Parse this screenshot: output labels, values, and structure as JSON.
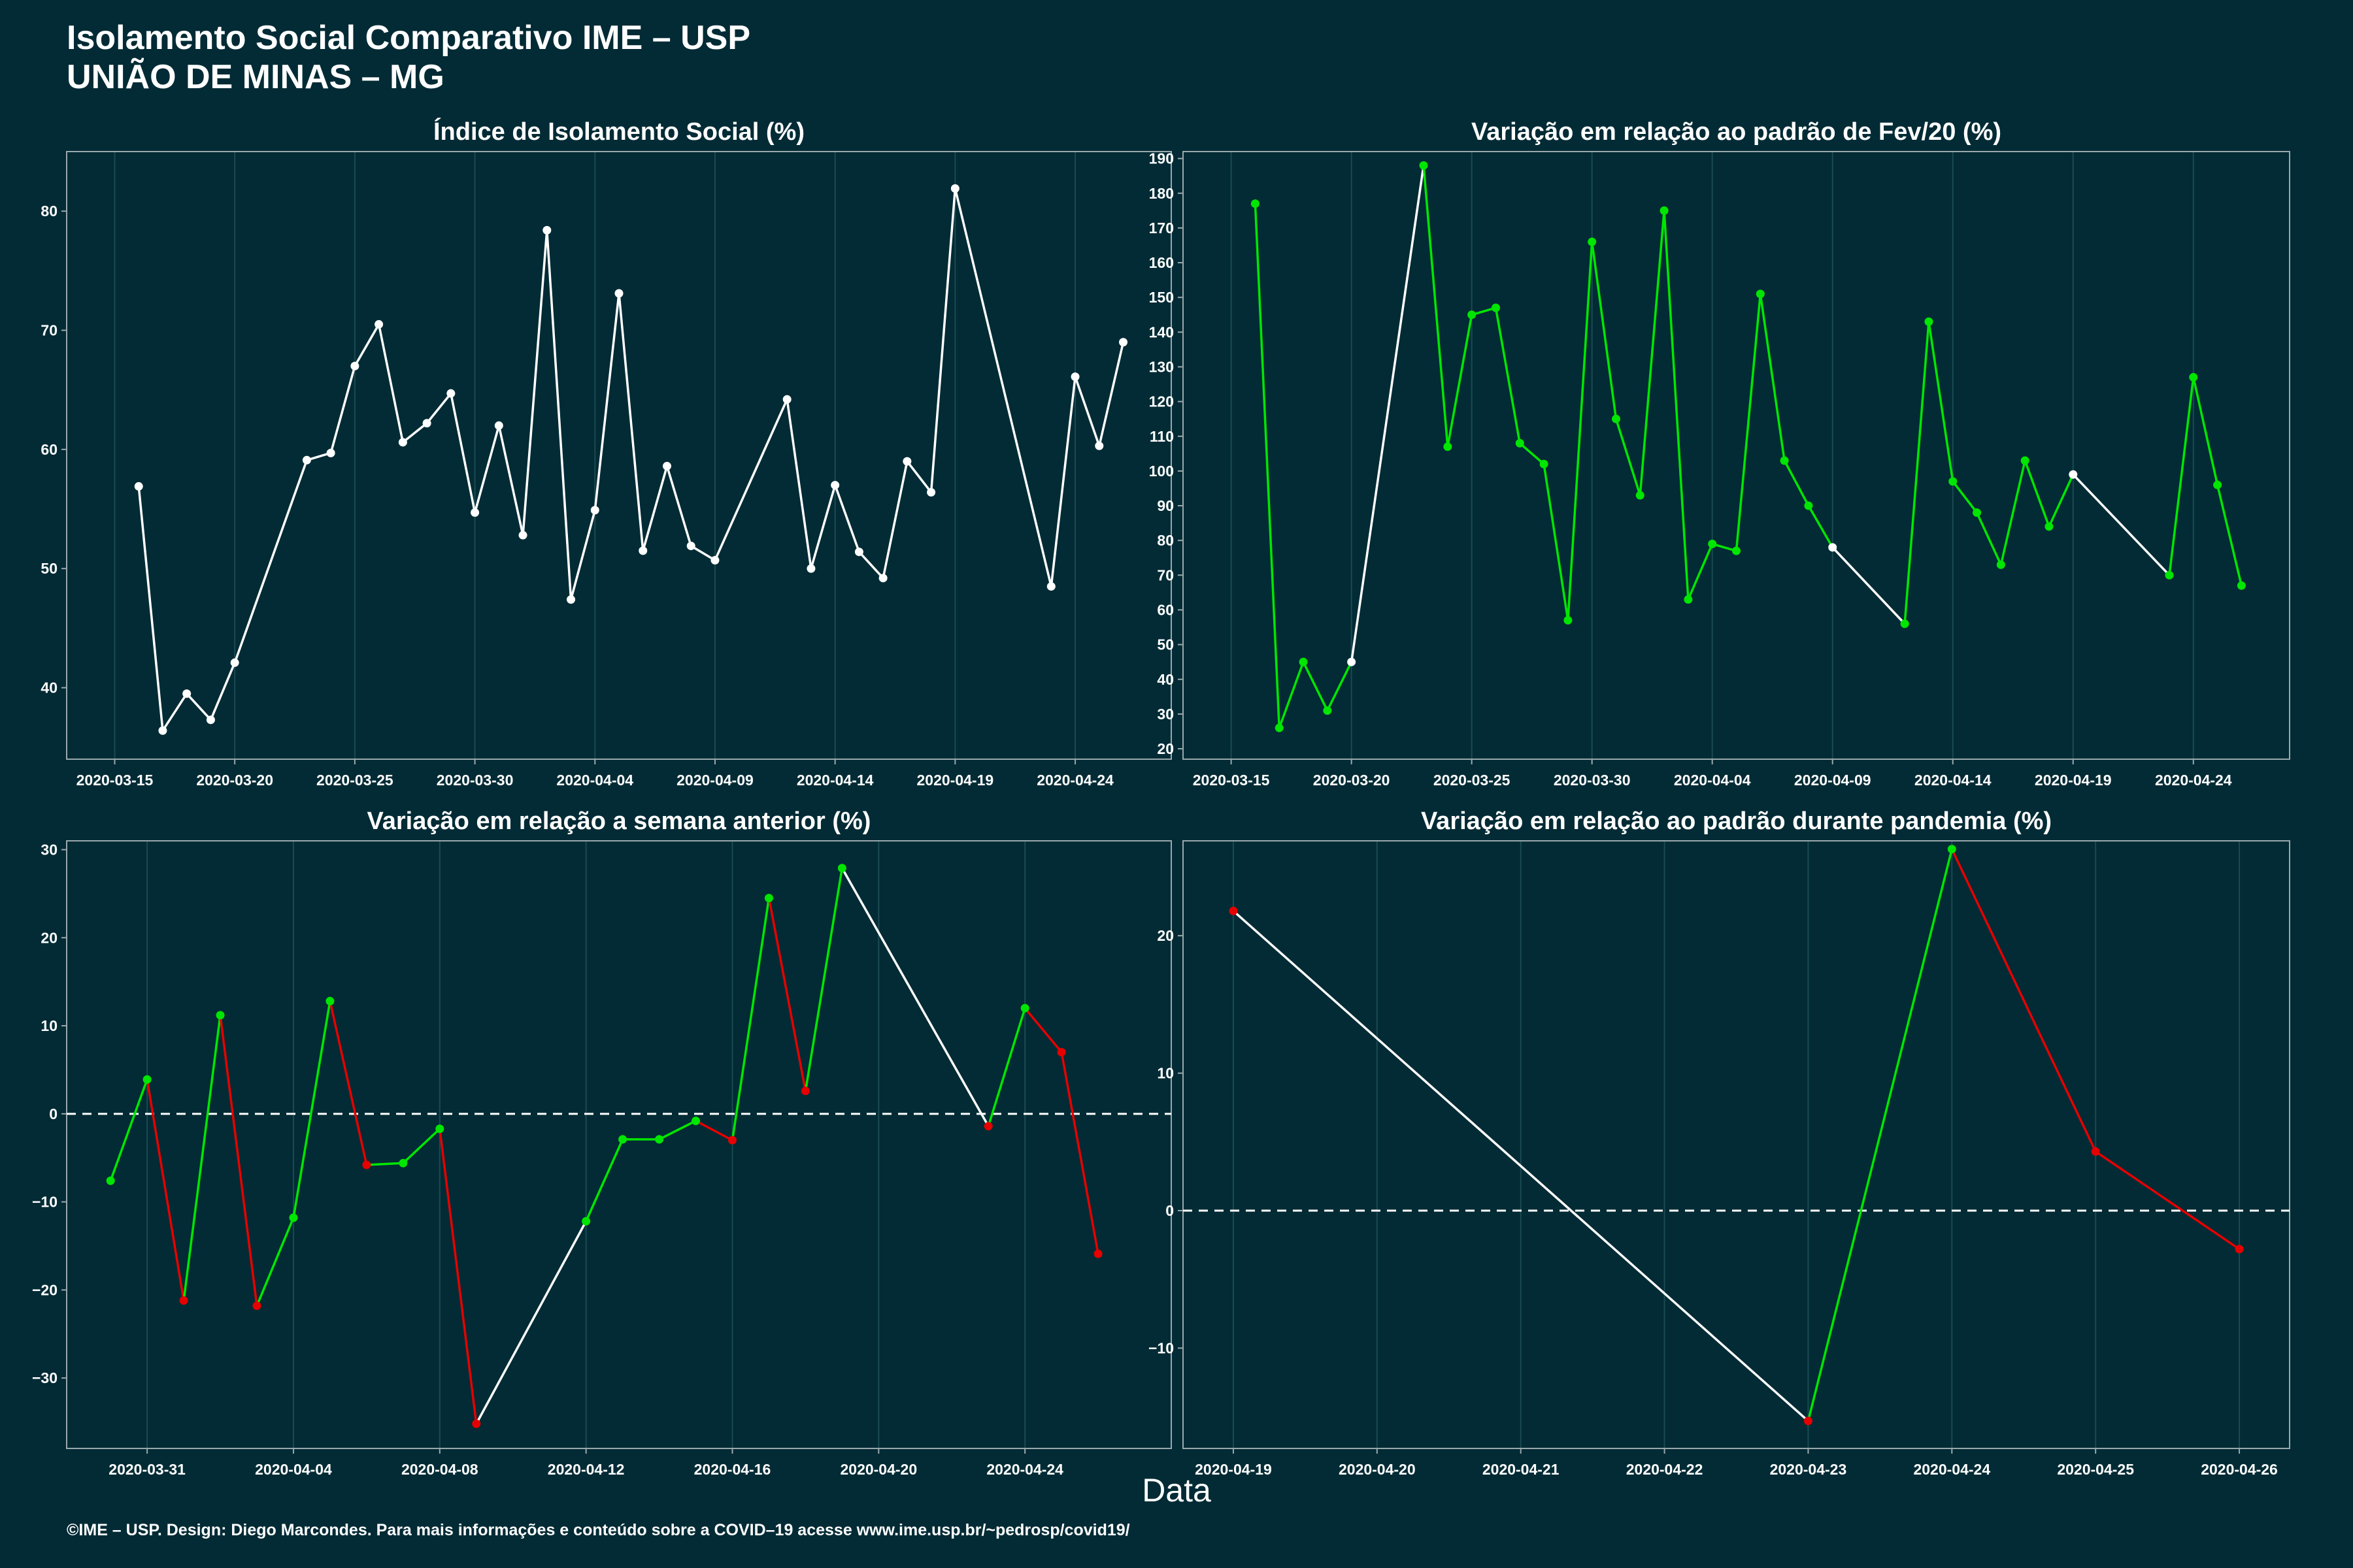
{
  "header": {
    "title_line1": "Isolamento Social Comparativo IME – USP",
    "title_line2": "UNIÃO DE MINAS – MG"
  },
  "xlabel": "Data",
  "footer": "©IME – USP. Design: Diego Marcondes. Para mais informações e conteúdo sobre a COVID–19 acesse www.ime.usp.br/~pedrosp/covid19/",
  "colors": {
    "background": "#022b35",
    "neutral": "#ffffff",
    "up": "#00e600",
    "down": "#e60000",
    "grid": "#1b4a52",
    "panel_border": "#9aa9ad"
  },
  "chart_data": [
    {
      "id": "p1",
      "type": "line",
      "title": "Índice de Isolamento Social (%)",
      "color_mode": "white",
      "xlim": [
        "2020-03-13",
        "2020-04-28"
      ],
      "ylim": [
        34,
        85
      ],
      "yticks": [
        40,
        50,
        60,
        70,
        80
      ],
      "xticks": [
        "2020-03-15",
        "2020-03-20",
        "2020-03-25",
        "2020-03-30",
        "2020-04-04",
        "2020-04-09",
        "2020-04-14",
        "2020-04-19",
        "2020-04-24"
      ],
      "ref_line": null,
      "points": [
        [
          "2020-03-16",
          56.9
        ],
        [
          "2020-03-17",
          36.4
        ],
        [
          "2020-03-18",
          39.5
        ],
        [
          "2020-03-19",
          37.3
        ],
        [
          "2020-03-20",
          42.1
        ],
        [
          "2020-03-23",
          59.1
        ],
        [
          "2020-03-24",
          59.7
        ],
        [
          "2020-03-25",
          67.0
        ],
        [
          "2020-03-26",
          70.5
        ],
        [
          "2020-03-27",
          60.6
        ],
        [
          "2020-03-28",
          62.2
        ],
        [
          "2020-03-29",
          64.7
        ],
        [
          "2020-03-30",
          54.7
        ],
        [
          "2020-03-31",
          62.0
        ],
        [
          "2020-04-01",
          52.8
        ],
        [
          "2020-04-02",
          78.4
        ],
        [
          "2020-04-03",
          47.4
        ],
        [
          "2020-04-04",
          54.9
        ],
        [
          "2020-04-05",
          73.1
        ],
        [
          "2020-04-06",
          51.5
        ],
        [
          "2020-04-07",
          58.6
        ],
        [
          "2020-04-08",
          51.9
        ],
        [
          "2020-04-09",
          50.7
        ],
        [
          "2020-04-12",
          64.2
        ],
        [
          "2020-04-13",
          50.0
        ],
        [
          "2020-04-14",
          57.0
        ],
        [
          "2020-04-15",
          51.4
        ],
        [
          "2020-04-16",
          49.2
        ],
        [
          "2020-04-17",
          59.0
        ],
        [
          "2020-04-18",
          56.4
        ],
        [
          "2020-04-19",
          81.9
        ],
        [
          "2020-04-23",
          48.5
        ],
        [
          "2020-04-24",
          66.1
        ],
        [
          "2020-04-25",
          60.3
        ],
        [
          "2020-04-26",
          69.0
        ]
      ]
    },
    {
      "id": "p2",
      "type": "line",
      "title": "Variação em relação ao padrão de Fev/20 (%)",
      "color_mode": "green",
      "xlim": [
        "2020-03-13",
        "2020-04-28"
      ],
      "ylim": [
        17,
        192
      ],
      "yticks": [
        20,
        30,
        40,
        50,
        60,
        70,
        80,
        90,
        100,
        110,
        120,
        130,
        140,
        150,
        160,
        170,
        180,
        190
      ],
      "xticks": [
        "2020-03-15",
        "2020-03-20",
        "2020-03-25",
        "2020-03-30",
        "2020-04-04",
        "2020-04-09",
        "2020-04-14",
        "2020-04-19",
        "2020-04-24"
      ],
      "ref_line": null,
      "points": [
        [
          "2020-03-16",
          177
        ],
        [
          "2020-03-17",
          26
        ],
        [
          "2020-03-18",
          45
        ],
        [
          "2020-03-19",
          31
        ],
        [
          "2020-03-20",
          45
        ],
        [
          "2020-03-23",
          188
        ],
        [
          "2020-03-24",
          107
        ],
        [
          "2020-03-25",
          145
        ],
        [
          "2020-03-26",
          147
        ],
        [
          "2020-03-27",
          108
        ],
        [
          "2020-03-28",
          102
        ],
        [
          "2020-03-29",
          57
        ],
        [
          "2020-03-30",
          166
        ],
        [
          "2020-03-31",
          115
        ],
        [
          "2020-04-01",
          93
        ],
        [
          "2020-04-02",
          175
        ],
        [
          "2020-04-03",
          63
        ],
        [
          "2020-04-04",
          79
        ],
        [
          "2020-04-05",
          77
        ],
        [
          "2020-04-06",
          151
        ],
        [
          "2020-04-07",
          103
        ],
        [
          "2020-04-08",
          90
        ],
        [
          "2020-04-09",
          78
        ],
        [
          "2020-04-12",
          56
        ],
        [
          "2020-04-13",
          143
        ],
        [
          "2020-04-14",
          97
        ],
        [
          "2020-04-15",
          88
        ],
        [
          "2020-04-16",
          73
        ],
        [
          "2020-04-17",
          103
        ],
        [
          "2020-04-18",
          84
        ],
        [
          "2020-04-19",
          99
        ],
        [
          "2020-04-23",
          70
        ],
        [
          "2020-04-24",
          127
        ],
        [
          "2020-04-25",
          96
        ],
        [
          "2020-04-26",
          67
        ]
      ]
    },
    {
      "id": "p3",
      "type": "line",
      "title": "Variação em relação a semana anterior (%)",
      "color_mode": "signed",
      "xlim": [
        "2020-03-28.8",
        "2020-04-28"
      ],
      "ylim": [
        -38,
        31
      ],
      "yticks": [
        -30,
        -20,
        -10,
        0,
        10,
        20,
        30
      ],
      "xticks": [
        "2020-03-31",
        "2020-04-04",
        "2020-04-08",
        "2020-04-12",
        "2020-04-16",
        "2020-04-20",
        "2020-04-24"
      ],
      "ref_line": 0,
      "points": [
        [
          "2020-03-30",
          -7.6
        ],
        [
          "2020-03-31",
          3.9
        ],
        [
          "2020-04-01",
          -21.2
        ],
        [
          "2020-04-02",
          11.2
        ],
        [
          "2020-04-03",
          -21.8
        ],
        [
          "2020-04-04",
          -11.8
        ],
        [
          "2020-04-05",
          12.8
        ],
        [
          "2020-04-06",
          -5.8
        ],
        [
          "2020-04-07",
          -5.6
        ],
        [
          "2020-04-08",
          -1.7
        ],
        [
          "2020-04-09",
          -35.2
        ],
        [
          "2020-04-12",
          -12.2
        ],
        [
          "2020-04-13",
          -2.9
        ],
        [
          "2020-04-14",
          -2.9
        ],
        [
          "2020-04-15",
          -0.8
        ],
        [
          "2020-04-16",
          -3.0
        ],
        [
          "2020-04-17",
          24.5
        ],
        [
          "2020-04-18",
          2.6
        ],
        [
          "2020-04-19",
          27.9
        ],
        [
          "2020-04-23",
          -1.4
        ],
        [
          "2020-04-24",
          12.0
        ],
        [
          "2020-04-25",
          7.0
        ],
        [
          "2020-04-26",
          -15.9
        ]
      ]
    },
    {
      "id": "p4",
      "type": "line",
      "title": "Variação em relação ao padrão durante pandemia (%)",
      "color_mode": "signed",
      "xlim": [
        "2020-04-18.65",
        "2020-04-26.35"
      ],
      "ylim": [
        -17.3,
        26.9
      ],
      "yticks": [
        -10,
        0,
        10,
        20
      ],
      "xticks": [
        "2020-04-19",
        "2020-04-20",
        "2020-04-21",
        "2020-04-22",
        "2020-04-23",
        "2020-04-24",
        "2020-04-25",
        "2020-04-26"
      ],
      "ref_line": 0,
      "points": [
        [
          "2020-04-19",
          21.8
        ],
        [
          "2020-04-23",
          -15.3
        ],
        [
          "2020-04-24",
          26.3
        ],
        [
          "2020-04-25",
          4.3
        ],
        [
          "2020-04-26",
          -2.8
        ]
      ]
    }
  ]
}
